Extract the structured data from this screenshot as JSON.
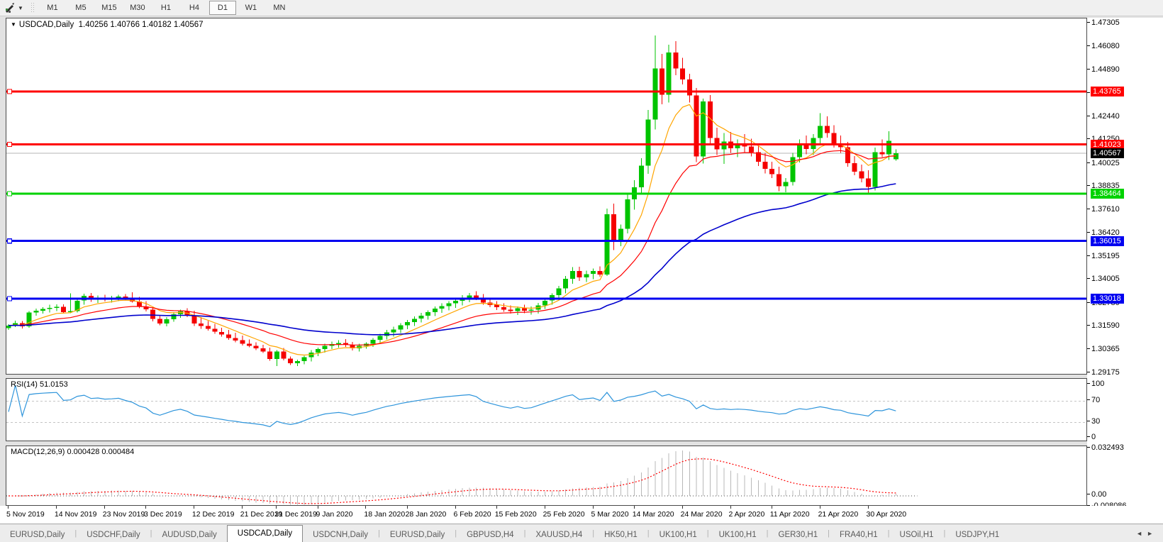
{
  "toolbar": {
    "tool_caret": "▼",
    "timeframes": [
      {
        "label": "M1",
        "active": false
      },
      {
        "label": "M5",
        "active": false
      },
      {
        "label": "M15",
        "active": false
      },
      {
        "label": "M30",
        "active": false
      },
      {
        "label": "H1",
        "active": false
      },
      {
        "label": "H4",
        "active": false
      },
      {
        "label": "D1",
        "active": true
      },
      {
        "label": "W1",
        "active": false
      },
      {
        "label": "MN",
        "active": false
      }
    ]
  },
  "chart": {
    "collapse_icon": "▼",
    "title_symbol": "USDCAD,Daily",
    "title_ohlc": "1.40256 1.40766 1.40182 1.40567"
  },
  "chart_data": {
    "type": "candlestick",
    "symbol": "USDCAD",
    "timeframe": "Daily",
    "colors": {
      "up": "#00c400",
      "down": "#f50000",
      "current_price_line": "#b4b4b4",
      "rsi_line": "#2d94db",
      "macd_hist": "#b8b8b8",
      "macd_signal": "#ff0000"
    },
    "y_axis": {
      "max": 1.4756,
      "min": 1.2912,
      "ticks": [
        "1.47305",
        "1.46080",
        "1.44890",
        "1.43665",
        "1.42440",
        "1.41250",
        "1.40025",
        "1.38835",
        "1.37610",
        "1.36420",
        "1.35195",
        "1.34005",
        "1.32780",
        "1.31590",
        "1.30365",
        "1.29175"
      ],
      "tick_values": [
        1.47305,
        1.4608,
        1.4489,
        1.43665,
        1.4244,
        1.4125,
        1.40025,
        1.38835,
        1.3761,
        1.3642,
        1.35195,
        1.34005,
        1.3278,
        1.3159,
        1.30365,
        1.29175
      ]
    },
    "x_labels": [
      {
        "text": "5 Nov 2019",
        "index": 0
      },
      {
        "text": "14 Nov 2019",
        "index": 7
      },
      {
        "text": "23 Nov 2019",
        "index": 14
      },
      {
        "text": "3 Dec 2019",
        "index": 20
      },
      {
        "text": "12 Dec 2019",
        "index": 27
      },
      {
        "text": "21 Dec 2019",
        "index": 34
      },
      {
        "text": "31 Dec 2019",
        "index": 39
      },
      {
        "text": "9 Jan 2020",
        "index": 45
      },
      {
        "text": "18 Jan 2020",
        "index": 52
      },
      {
        "text": "28 Jan 2020",
        "index": 58
      },
      {
        "text": "6 Feb 2020",
        "index": 65
      },
      {
        "text": "15 Feb 2020",
        "index": 71
      },
      {
        "text": "25 Feb 2020",
        "index": 78
      },
      {
        "text": "5 Mar 2020",
        "index": 85
      },
      {
        "text": "14 Mar 2020",
        "index": 91
      },
      {
        "text": "24 Mar 2020",
        "index": 98
      },
      {
        "text": "2 Apr 2020",
        "index": 105
      },
      {
        "text": "11 Apr 2020",
        "index": 111
      },
      {
        "text": "21 Apr 2020",
        "index": 118
      },
      {
        "text": "30 Apr 2020",
        "index": 125
      }
    ],
    "hlines": [
      {
        "price": 1.43765,
        "label": "1.43765",
        "color": "#ff0000",
        "width": 3
      },
      {
        "price": 1.41023,
        "label": "1.41023",
        "color": "#ff0000",
        "width": 3
      },
      {
        "price": 1.38464,
        "label": "1.38464",
        "color": "#00d200",
        "width": 3
      },
      {
        "price": 1.36015,
        "label": "1.36015",
        "color": "#0000f0",
        "width": 3
      },
      {
        "price": 1.33018,
        "label": "1.33018",
        "color": "#0000f0",
        "width": 3
      }
    ],
    "current_price": {
      "value": 1.40567,
      "label": "1.40567",
      "badge_color": "#000000"
    },
    "moving_averages": [
      {
        "type": "ema",
        "period": 8,
        "color": "#ffa500",
        "width": 1.2
      },
      {
        "type": "ema",
        "period": 20,
        "color": "#ff0000",
        "width": 1.2
      },
      {
        "type": "ema",
        "period": 55,
        "color": "#0000cd",
        "width": 1.6
      }
    ],
    "candles": [
      [
        1.315,
        1.317,
        1.314,
        1.3163
      ],
      [
        1.3163,
        1.3188,
        1.3155,
        1.3176
      ],
      [
        1.3176,
        1.3186,
        1.3148,
        1.3158
      ],
      [
        1.3158,
        1.3238,
        1.3152,
        1.323
      ],
      [
        1.323,
        1.325,
        1.3214,
        1.324
      ],
      [
        1.324,
        1.3258,
        1.3224,
        1.3248
      ],
      [
        1.3248,
        1.327,
        1.323,
        1.3254
      ],
      [
        1.3254,
        1.3272,
        1.3238,
        1.326
      ],
      [
        1.326,
        1.3272,
        1.3224,
        1.3232
      ],
      [
        1.3232,
        1.333,
        1.3226,
        1.3238
      ],
      [
        1.3238,
        1.3302,
        1.323,
        1.3292
      ],
      [
        1.3292,
        1.3328,
        1.327,
        1.3316
      ],
      [
        1.3316,
        1.3332,
        1.3286,
        1.3296
      ],
      [
        1.3296,
        1.3318,
        1.328,
        1.3306
      ],
      [
        1.3306,
        1.3322,
        1.3288,
        1.3298
      ],
      [
        1.3298,
        1.3316,
        1.3282,
        1.3304
      ],
      [
        1.3304,
        1.3322,
        1.329,
        1.3314
      ],
      [
        1.3314,
        1.3326,
        1.3294,
        1.33
      ],
      [
        1.33,
        1.3335,
        1.3282,
        1.3288
      ],
      [
        1.3288,
        1.3312,
        1.3252,
        1.3262
      ],
      [
        1.3262,
        1.329,
        1.3236,
        1.3246
      ],
      [
        1.3246,
        1.3258,
        1.3184,
        1.3198
      ],
      [
        1.3198,
        1.3212,
        1.3164,
        1.3174
      ],
      [
        1.3174,
        1.3206,
        1.3158,
        1.3196
      ],
      [
        1.3196,
        1.3232,
        1.3182,
        1.3222
      ],
      [
        1.3222,
        1.3246,
        1.3202,
        1.3236
      ],
      [
        1.3236,
        1.3252,
        1.3206,
        1.3216
      ],
      [
        1.3216,
        1.324,
        1.316,
        1.3174
      ],
      [
        1.3174,
        1.3206,
        1.3146,
        1.316
      ],
      [
        1.316,
        1.3186,
        1.3136,
        1.3146
      ],
      [
        1.3146,
        1.3172,
        1.312,
        1.313
      ],
      [
        1.313,
        1.3152,
        1.3106,
        1.3116
      ],
      [
        1.3116,
        1.314,
        1.3088,
        1.3098
      ],
      [
        1.3098,
        1.3126,
        1.3076,
        1.3086
      ],
      [
        1.3086,
        1.311,
        1.306,
        1.3068
      ],
      [
        1.3068,
        1.309,
        1.305,
        1.3058
      ],
      [
        1.3058,
        1.3076,
        1.3036,
        1.3044
      ],
      [
        1.3044,
        1.3062,
        1.302,
        1.3028
      ],
      [
        1.3028,
        1.3048,
        1.298,
        1.299
      ],
      [
        1.299,
        1.3036,
        1.2952,
        1.3028
      ],
      [
        1.3028,
        1.3046,
        1.2982,
        1.2992
      ],
      [
        1.2992,
        1.3002,
        1.2958,
        1.2968
      ],
      [
        1.2968,
        1.2986,
        1.2952,
        1.2978
      ],
      [
        1.2978,
        1.3006,
        1.2962,
        1.2998
      ],
      [
        1.2998,
        1.3036,
        1.2976,
        1.3022
      ],
      [
        1.3022,
        1.3048,
        1.3004,
        1.304
      ],
      [
        1.304,
        1.3068,
        1.3022,
        1.3058
      ],
      [
        1.3058,
        1.308,
        1.304,
        1.3066
      ],
      [
        1.3066,
        1.3086,
        1.3048,
        1.3072
      ],
      [
        1.3072,
        1.3092,
        1.3052,
        1.3062
      ],
      [
        1.3062,
        1.3078,
        1.3034,
        1.3044
      ],
      [
        1.3044,
        1.3068,
        1.3028,
        1.3058
      ],
      [
        1.3058,
        1.3076,
        1.3042,
        1.3068
      ],
      [
        1.3068,
        1.3098,
        1.3052,
        1.3088
      ],
      [
        1.3088,
        1.312,
        1.307,
        1.3108
      ],
      [
        1.3108,
        1.314,
        1.309,
        1.3128
      ],
      [
        1.3128,
        1.3156,
        1.3106,
        1.3142
      ],
      [
        1.3142,
        1.3176,
        1.3124,
        1.3164
      ],
      [
        1.3164,
        1.3192,
        1.3144,
        1.318
      ],
      [
        1.318,
        1.321,
        1.316,
        1.3198
      ],
      [
        1.3198,
        1.3228,
        1.3178,
        1.3214
      ],
      [
        1.3214,
        1.3242,
        1.3194,
        1.3232
      ],
      [
        1.3232,
        1.3262,
        1.3212,
        1.325
      ],
      [
        1.325,
        1.3278,
        1.3228,
        1.3264
      ],
      [
        1.3264,
        1.329,
        1.3242,
        1.3278
      ],
      [
        1.3278,
        1.3302,
        1.3254,
        1.3292
      ],
      [
        1.3292,
        1.332,
        1.3268,
        1.3306
      ],
      [
        1.3306,
        1.3332,
        1.3284,
        1.3318
      ],
      [
        1.3318,
        1.334,
        1.3294,
        1.3308
      ],
      [
        1.3308,
        1.3326,
        1.327,
        1.3282
      ],
      [
        1.3282,
        1.3306,
        1.3258,
        1.327
      ],
      [
        1.327,
        1.329,
        1.3244,
        1.3258
      ],
      [
        1.3258,
        1.3278,
        1.3234,
        1.3246
      ],
      [
        1.3246,
        1.3268,
        1.3224,
        1.3238
      ],
      [
        1.3238,
        1.3262,
        1.3218,
        1.3252
      ],
      [
        1.3252,
        1.327,
        1.3226,
        1.324
      ],
      [
        1.324,
        1.3262,
        1.322,
        1.3246
      ],
      [
        1.3246,
        1.328,
        1.3224,
        1.3268
      ],
      [
        1.3268,
        1.3302,
        1.3248,
        1.3292
      ],
      [
        1.3292,
        1.333,
        1.327,
        1.332
      ],
      [
        1.332,
        1.3368,
        1.3298,
        1.3356
      ],
      [
        1.3356,
        1.342,
        1.333,
        1.3406
      ],
      [
        1.3406,
        1.3466,
        1.338,
        1.3446
      ],
      [
        1.3446,
        1.3468,
        1.3394,
        1.3412
      ],
      [
        1.3412,
        1.3448,
        1.3388,
        1.343
      ],
      [
        1.343,
        1.3458,
        1.3404,
        1.3446
      ],
      [
        1.3446,
        1.347,
        1.3416,
        1.3428
      ],
      [
        1.3428,
        1.377,
        1.342,
        1.374
      ],
      [
        1.374,
        1.3796,
        1.3554,
        1.3606
      ],
      [
        1.3606,
        1.3686,
        1.3574,
        1.3664
      ],
      [
        1.3664,
        1.3846,
        1.364,
        1.3818
      ],
      [
        1.3818,
        1.3916,
        1.3764,
        1.388
      ],
      [
        1.388,
        1.403,
        1.385,
        1.3992
      ],
      [
        1.3992,
        1.4282,
        1.395,
        1.4232
      ],
      [
        1.4232,
        1.4668,
        1.418,
        1.4496
      ],
      [
        1.4496,
        1.4572,
        1.431,
        1.436
      ],
      [
        1.436,
        1.462,
        1.432,
        1.458
      ],
      [
        1.458,
        1.4638,
        1.4462,
        1.4496
      ],
      [
        1.4496,
        1.4552,
        1.4414,
        1.444
      ],
      [
        1.444,
        1.4468,
        1.432,
        1.4356
      ],
      [
        1.4356,
        1.4396,
        1.401,
        1.404
      ],
      [
        1.404,
        1.434,
        1.4004,
        1.4326
      ],
      [
        1.4326,
        1.4358,
        1.4104,
        1.4136
      ],
      [
        1.4136,
        1.419,
        1.4048,
        1.4076
      ],
      [
        1.4076,
        1.4162,
        1.4002,
        1.4118
      ],
      [
        1.4118,
        1.4168,
        1.4058,
        1.4082
      ],
      [
        1.4082,
        1.4128,
        1.4036,
        1.4108
      ],
      [
        1.4108,
        1.4156,
        1.4062,
        1.4092
      ],
      [
        1.4092,
        1.4132,
        1.404,
        1.4062
      ],
      [
        1.4062,
        1.4098,
        1.399,
        1.4012
      ],
      [
        1.4012,
        1.4058,
        1.3952,
        1.3976
      ],
      [
        1.3976,
        1.4012,
        1.3928,
        1.3948
      ],
      [
        1.3948,
        1.3986,
        1.386,
        1.3886
      ],
      [
        1.3886,
        1.3928,
        1.3855,
        1.3908
      ],
      [
        1.3908,
        1.4058,
        1.389,
        1.4036
      ],
      [
        1.4036,
        1.4128,
        1.4008,
        1.4106
      ],
      [
        1.4106,
        1.4148,
        1.4052,
        1.4078
      ],
      [
        1.4078,
        1.4156,
        1.4048,
        1.4136
      ],
      [
        1.4136,
        1.4265,
        1.4105,
        1.4198
      ],
      [
        1.4198,
        1.4248,
        1.4138,
        1.4162
      ],
      [
        1.4162,
        1.4202,
        1.4086,
        1.4106
      ],
      [
        1.4106,
        1.4148,
        1.4058,
        1.4088
      ],
      [
        1.4088,
        1.4116,
        1.3986,
        1.4006
      ],
      [
        1.4006,
        1.4042,
        1.3942,
        1.3962
      ],
      [
        1.3962,
        1.3998,
        1.3906,
        1.3926
      ],
      [
        1.3926,
        1.3968,
        1.385,
        1.3882
      ],
      [
        1.3882,
        1.4086,
        1.3864,
        1.4062
      ],
      [
        1.4062,
        1.4128,
        1.4036,
        1.4052
      ],
      [
        1.4052,
        1.417,
        1.4022,
        1.4122
      ],
      [
        1.40256,
        1.40766,
        1.40182,
        1.40567
      ]
    ],
    "indicators": {
      "rsi": {
        "label": "RSI(14) 51.0153",
        "period": 14,
        "value": 51.0153,
        "levels": [
          70,
          30
        ],
        "axis": [
          {
            "label": "100",
            "value": 100
          },
          {
            "label": "70",
            "value": 70
          },
          {
            "label": "30",
            "value": 30
          },
          {
            "label": "0",
            "value": 0
          }
        ]
      },
      "macd": {
        "label": "MACD(12,26,9) 0.000428 0.000484",
        "fast": 12,
        "slow": 26,
        "signal_period": 9,
        "main_value": 0.000428,
        "signal_value": 0.000484,
        "axis": [
          {
            "label": "0.032493",
            "value": 0.032493
          },
          {
            "label": "0.00",
            "value": 0
          },
          {
            "label": "-0.008086",
            "value": -0.008086
          }
        ]
      }
    }
  },
  "tabs": {
    "items": [
      {
        "label": "EURUSD,Daily",
        "active": false
      },
      {
        "label": "USDCHF,Daily",
        "active": false
      },
      {
        "label": "AUDUSD,Daily",
        "active": false
      },
      {
        "label": "USDCAD,Daily",
        "active": true
      },
      {
        "label": "USDCNH,Daily",
        "active": false
      },
      {
        "label": "EURUSD,Daily",
        "active": false
      },
      {
        "label": "GBPUSD,H4",
        "active": false
      },
      {
        "label": "XAUUSD,H4",
        "active": false
      },
      {
        "label": "HK50,H1",
        "active": false
      },
      {
        "label": "UK100,H1",
        "active": false
      },
      {
        "label": "UK100,H1",
        "active": false
      },
      {
        "label": "GER30,H1",
        "active": false
      },
      {
        "label": "FRA40,H1",
        "active": false
      },
      {
        "label": "USOil,H1",
        "active": false
      },
      {
        "label": "USDJPY,H1",
        "active": false
      }
    ],
    "nav_left": "◄",
    "nav_right": "►"
  }
}
